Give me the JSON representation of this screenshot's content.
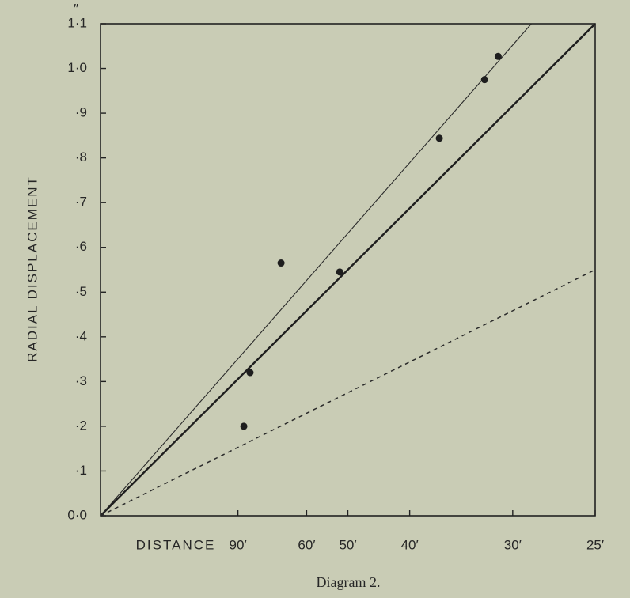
{
  "chart_data": {
    "type": "scatter",
    "title": "Diagram 2.",
    "xlabel": "DISTANCE",
    "ylabel": "RADIAL DISPLACEMENT",
    "y_unit": "″",
    "x_scale": "reciprocal",
    "xlim": [
      null,
      25
    ],
    "ylim": [
      0,
      1.1
    ],
    "xticks": [
      {
        "value": 90,
        "label": "90′"
      },
      {
        "value": 60,
        "label": "60′"
      },
      {
        "value": 50,
        "label": "50′"
      },
      {
        "value": 40,
        "label": "40′"
      },
      {
        "value": 30,
        "label": "30′"
      },
      {
        "value": 25,
        "label": "25′"
      }
    ],
    "yticks": [
      {
        "value": 0,
        "label": "0·0"
      },
      {
        "value": 0.1,
        "label": "·1"
      },
      {
        "value": 0.2,
        "label": "·2"
      },
      {
        "value": 0.3,
        "label": "·3"
      },
      {
        "value": 0.4,
        "label": "·4"
      },
      {
        "value": 0.5,
        "label": "·5"
      },
      {
        "value": 0.6,
        "label": "·6"
      },
      {
        "value": 0.7,
        "label": "·7"
      },
      {
        "value": 0.8,
        "label": "·8"
      },
      {
        "value": 0.9,
        "label": "·9"
      },
      {
        "value": 1.0,
        "label": "1·0"
      },
      {
        "value": 1.1,
        "label": "1·1"
      }
    ],
    "points": {
      "color": "#1e1e1e",
      "x": [
        86.3,
        82.7,
        68.5,
        51.7,
        36.5,
        32.2,
        31.1
      ],
      "values": [
        0.2,
        0.32,
        0.565,
        0.545,
        0.844,
        0.975,
        1.027
      ]
    },
    "lines": [
      {
        "x": [
          25
        ],
        "values": [
          1.1
        ],
        "width": 2.4,
        "dashed": false,
        "color": "#1e1e1e"
      },
      {
        "x": [
          28.7
        ],
        "values": [
          1.1
        ],
        "width": 1.1,
        "dashed": false,
        "color": "#2a2a2a"
      },
      {
        "x": [
          25
        ],
        "values": [
          0.55
        ],
        "width": 1.5,
        "dashed": true,
        "color": "#2a2a2a"
      }
    ]
  }
}
